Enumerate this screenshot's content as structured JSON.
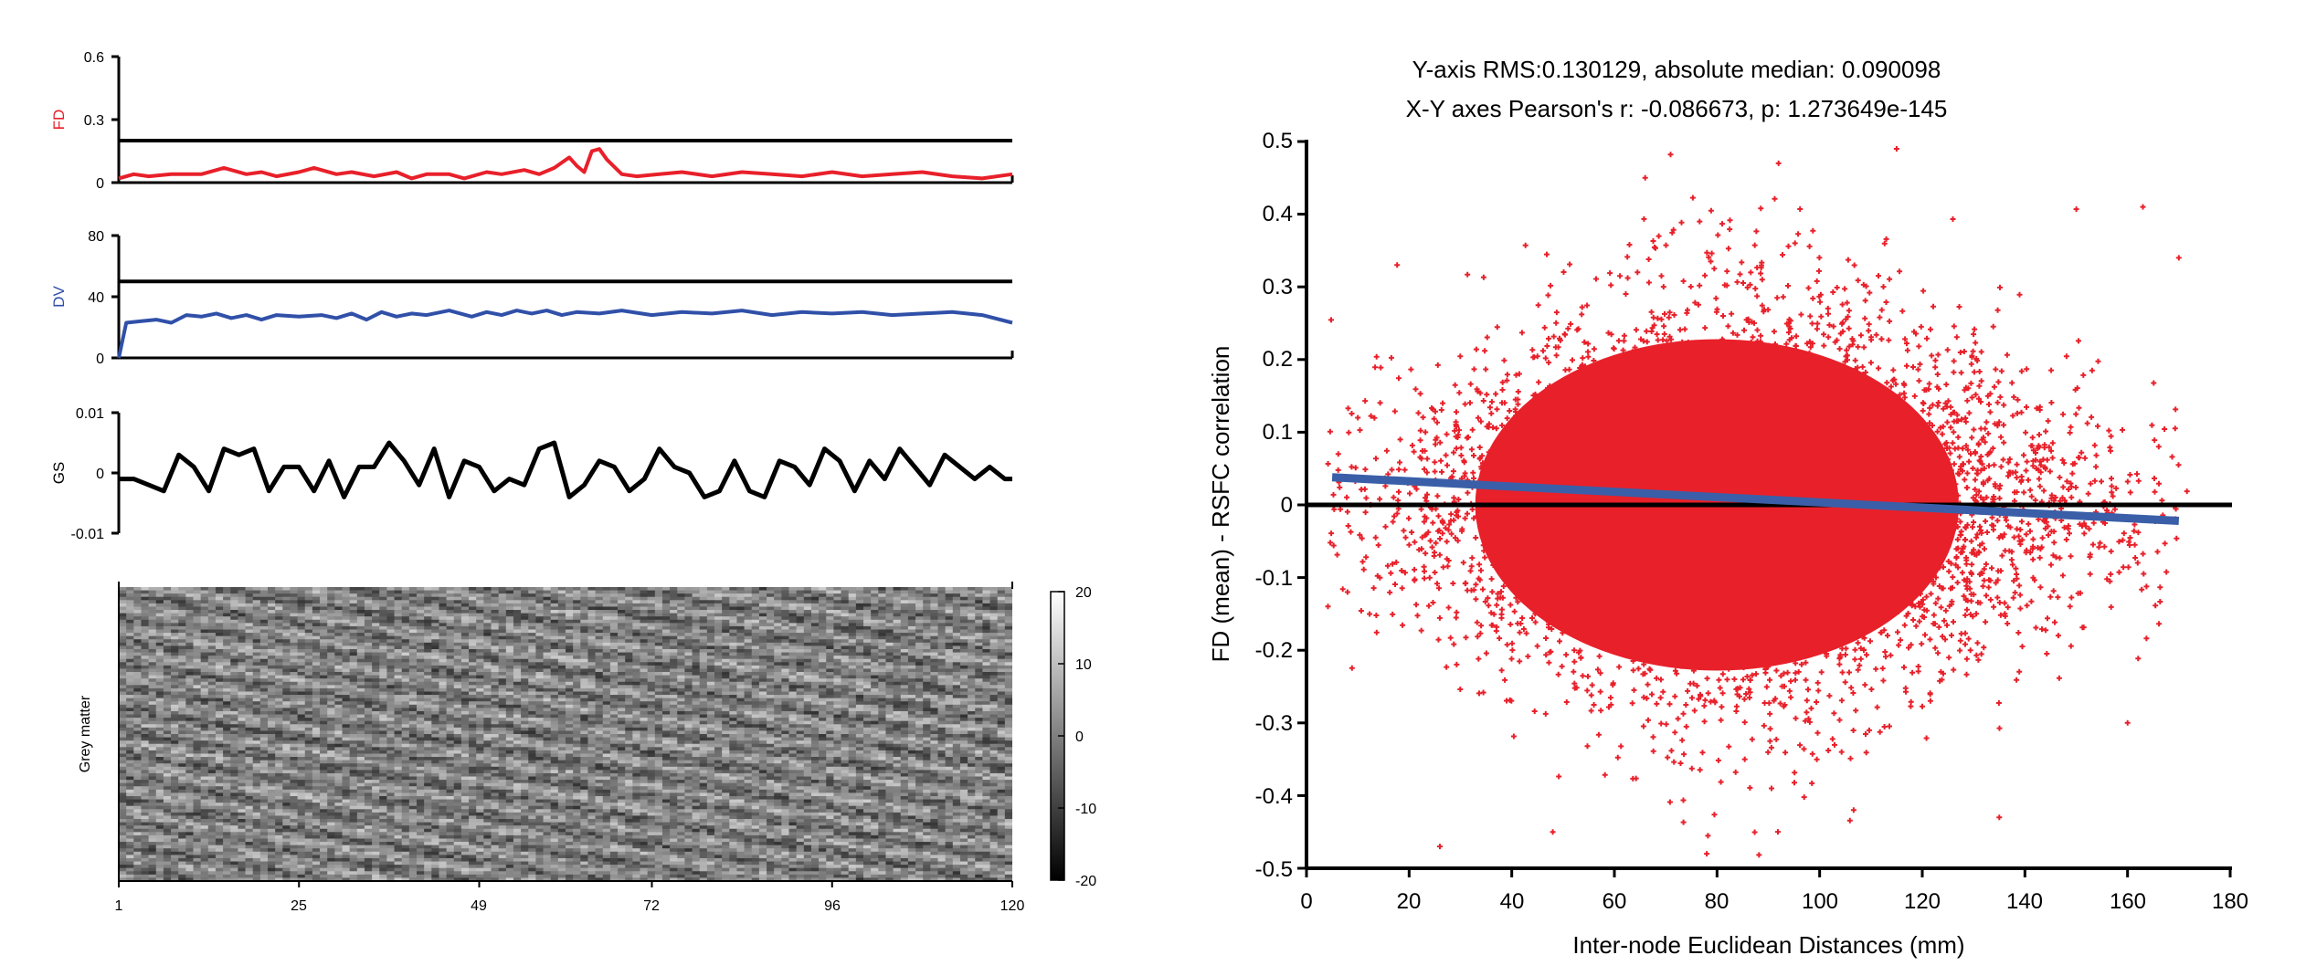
{
  "chart_data": [
    {
      "type": "line",
      "panel": "FD",
      "ylabel": "FD",
      "ylabel_color": "#e8202a",
      "line_color": "#e8202a",
      "ylim": [
        0,
        0.6
      ],
      "yticks": [
        "0",
        "0.3",
        "0.6"
      ],
      "xlim": [
        1,
        120
      ],
      "threshold": 0.2,
      "series": [
        {
          "x": [
            1,
            3,
            5,
            8,
            12,
            15,
            18,
            20,
            22,
            25,
            27,
            30,
            32,
            35,
            38,
            40,
            42,
            45,
            47,
            50,
            52,
            55,
            57,
            59,
            61,
            62,
            63,
            64,
            65,
            66,
            68,
            70,
            73,
            76,
            80,
            84,
            88,
            92,
            96,
            100,
            104,
            108,
            112,
            116,
            120
          ],
          "values": [
            0.02,
            0.04,
            0.03,
            0.04,
            0.04,
            0.07,
            0.04,
            0.05,
            0.03,
            0.05,
            0.07,
            0.04,
            0.05,
            0.03,
            0.05,
            0.02,
            0.04,
            0.04,
            0.02,
            0.05,
            0.04,
            0.06,
            0.04,
            0.07,
            0.12,
            0.08,
            0.05,
            0.15,
            0.16,
            0.11,
            0.04,
            0.03,
            0.04,
            0.05,
            0.03,
            0.05,
            0.04,
            0.03,
            0.05,
            0.03,
            0.04,
            0.05,
            0.03,
            0.02,
            0.04
          ]
        }
      ]
    },
    {
      "type": "line",
      "panel": "DV",
      "ylabel": "DV",
      "ylabel_color": "#3050a8",
      "line_color": "#3050a8",
      "ylim": [
        0,
        80
      ],
      "yticks": [
        "0",
        "40",
        "80"
      ],
      "xlim": [
        1,
        120
      ],
      "threshold": 50,
      "series": [
        {
          "x": [
            1,
            2,
            4,
            6,
            8,
            10,
            12,
            14,
            16,
            18,
            20,
            22,
            25,
            28,
            30,
            32,
            34,
            36,
            38,
            40,
            42,
            45,
            48,
            50,
            52,
            54,
            56,
            58,
            60,
            62,
            65,
            68,
            72,
            76,
            80,
            84,
            88,
            92,
            96,
            100,
            104,
            108,
            112,
            116,
            120
          ],
          "values": [
            0,
            23,
            24,
            25,
            23,
            28,
            27,
            29,
            26,
            28,
            25,
            28,
            27,
            28,
            26,
            29,
            25,
            30,
            27,
            29,
            28,
            31,
            27,
            30,
            28,
            31,
            29,
            31,
            28,
            30,
            29,
            31,
            28,
            30,
            29,
            31,
            28,
            30,
            29,
            30,
            28,
            29,
            30,
            28,
            23
          ]
        }
      ]
    },
    {
      "type": "line",
      "panel": "GS",
      "ylabel": "GS",
      "line_color": "#000000",
      "ylim": [
        -0.01,
        0.01
      ],
      "yticks": [
        "-0.01",
        "0",
        "0.01"
      ],
      "xlim": [
        1,
        120
      ],
      "series": [
        {
          "x": [
            1,
            3,
            5,
            7,
            9,
            11,
            13,
            15,
            17,
            19,
            21,
            23,
            25,
            27,
            29,
            31,
            33,
            35,
            37,
            39,
            41,
            43,
            45,
            47,
            49,
            51,
            53,
            55,
            57,
            59,
            61,
            63,
            65,
            67,
            69,
            71,
            73,
            75,
            77,
            79,
            81,
            83,
            85,
            87,
            89,
            91,
            93,
            95,
            97,
            99,
            101,
            103,
            105,
            107,
            109,
            111,
            113,
            115,
            117,
            119,
            120
          ],
          "values": [
            -0.001,
            -0.001,
            -0.002,
            -0.003,
            0.003,
            0.001,
            -0.003,
            0.004,
            0.003,
            0.004,
            -0.003,
            0.001,
            0.001,
            -0.003,
            0.002,
            -0.004,
            0.001,
            0.001,
            0.005,
            0.002,
            -0.002,
            0.004,
            -0.004,
            0.002,
            0.001,
            -0.003,
            -0.001,
            -0.002,
            0.004,
            0.005,
            -0.004,
            -0.002,
            0.002,
            0.001,
            -0.003,
            -0.001,
            0.004,
            0.001,
            0.0,
            -0.004,
            -0.003,
            0.002,
            -0.003,
            -0.004,
            0.002,
            0.001,
            -0.002,
            0.004,
            0.002,
            -0.003,
            0.002,
            -0.001,
            0.004,
            0.001,
            -0.002,
            0.003,
            0.001,
            -0.001,
            0.001,
            -0.001,
            -0.001
          ]
        }
      ]
    },
    {
      "type": "heatmap",
      "panel": "Grey matter",
      "ylabel": "Grey matter",
      "xlim": [
        1,
        120
      ],
      "xticks": [
        "1",
        "25",
        "49",
        "72",
        "96",
        "120"
      ],
      "colorbar": {
        "range": [
          -20,
          20
        ],
        "ticks": [
          "20",
          "10",
          "0",
          "-10",
          "-20"
        ],
        "colormap": "grayscale"
      }
    },
    {
      "type": "scatter",
      "title": "Y-axis RMS:0.130129, absolute median: 0.090098",
      "subtitle": "X-Y axes Pearson's r: -0.086673, p: 1.273649e-145",
      "xlabel": "Inter-node Euclidean Distances (mm)",
      "ylabel": "FD (mean) - RSFC correlation",
      "xlim": [
        0,
        180
      ],
      "ylim": [
        -0.5,
        0.5
      ],
      "xticks": [
        "0",
        "20",
        "40",
        "60",
        "80",
        "100",
        "120",
        "140",
        "160",
        "180"
      ],
      "yticks": [
        "-0.5",
        "-0.4",
        "-0.3",
        "-0.2",
        "-0.1",
        "0",
        "0.1",
        "0.2",
        "0.3",
        "0.4",
        "0.5"
      ],
      "point_color": "#e8202a",
      "point_cloud": {
        "x_center": 85,
        "x_spread": 40,
        "y_center": 0.0,
        "y_spread": 0.16,
        "n": 9000
      },
      "outliers": [
        {
          "x": 115,
          "y": 0.49
        },
        {
          "x": 66,
          "y": 0.45
        },
        {
          "x": 163,
          "y": 0.41
        },
        {
          "x": 170,
          "y": 0.34
        },
        {
          "x": 26,
          "y": -0.47
        },
        {
          "x": 48,
          "y": -0.45
        },
        {
          "x": 78,
          "y": -0.48
        },
        {
          "x": 135,
          "y": -0.43
        },
        {
          "x": 92,
          "y": 0.47
        },
        {
          "x": 10,
          "y": 0.12
        },
        {
          "x": 8,
          "y": -0.12
        },
        {
          "x": 160,
          "y": -0.3
        }
      ],
      "zero_line": 0,
      "fit_line": {
        "color": "#3a5fa8",
        "x": [
          5,
          170
        ],
        "y": [
          0.038,
          -0.022
        ]
      }
    }
  ]
}
